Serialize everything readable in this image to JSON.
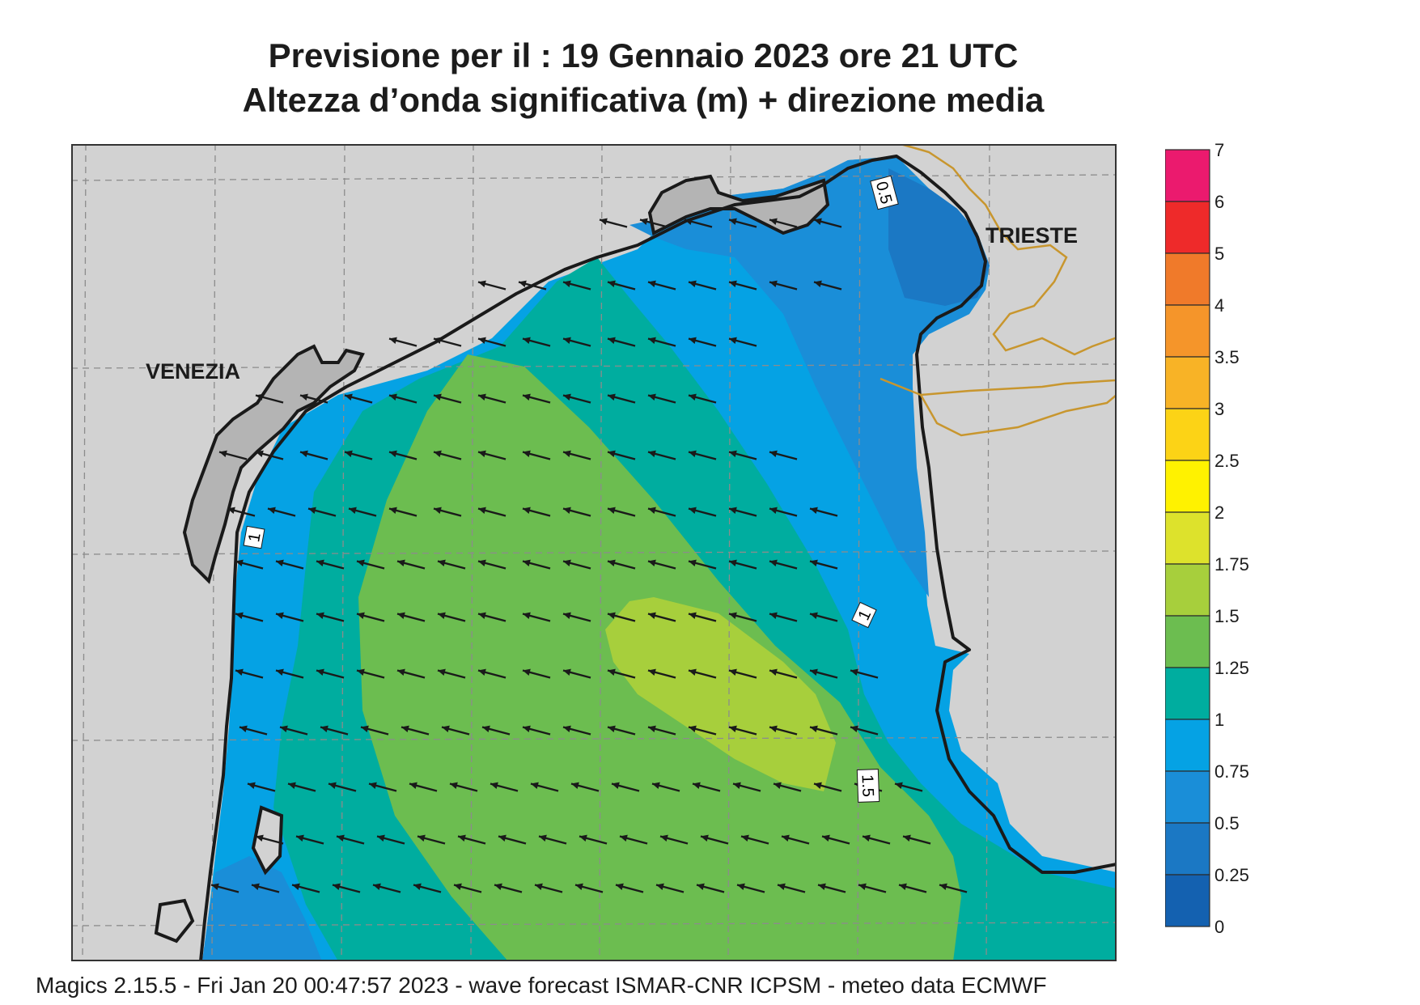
{
  "header": {
    "title_line1": "Previsione per il  :  19  Gennaio  2023   ore 21 UTC",
    "title_line2": "Altezza d’onda significativa (m) + direzione media"
  },
  "map": {
    "cities": [
      "VENEZIA",
      "TRIESTE"
    ],
    "contour_labels": [
      "0.5",
      "1",
      "1",
      "1.5"
    ],
    "arrow_direction": "towards west-northwest",
    "colors": {
      "land": "#d2d2d2",
      "coast": "#1a1a1a",
      "border": "#c8962e",
      "grid": "#8c8c8c"
    }
  },
  "legend": {
    "labels": [
      "7",
      "6",
      "5",
      "4",
      "3.5",
      "3",
      "2.5",
      "2",
      "1.75",
      "1.5",
      "1.25",
      "1",
      "0.75",
      "0.5",
      "0.25",
      "0"
    ],
    "colors": [
      "#eb1a6e",
      "#ee2a2a",
      "#f07a2a",
      "#f5952a",
      "#f8b326",
      "#fcd316",
      "#fff200",
      "#dde22c",
      "#a7cf3c",
      "#6cbd50",
      "#00ad9f",
      "#05a2e4",
      "#1a8ed8",
      "#1b78c4",
      "#1461b0"
    ]
  },
  "footer": {
    "text": "Magics 2.15.5 - Fri Jan 20 00:47:57 2023 - wave forecast  ISMAR-CNR  ICPSM - meteo data    ECMWF"
  }
}
